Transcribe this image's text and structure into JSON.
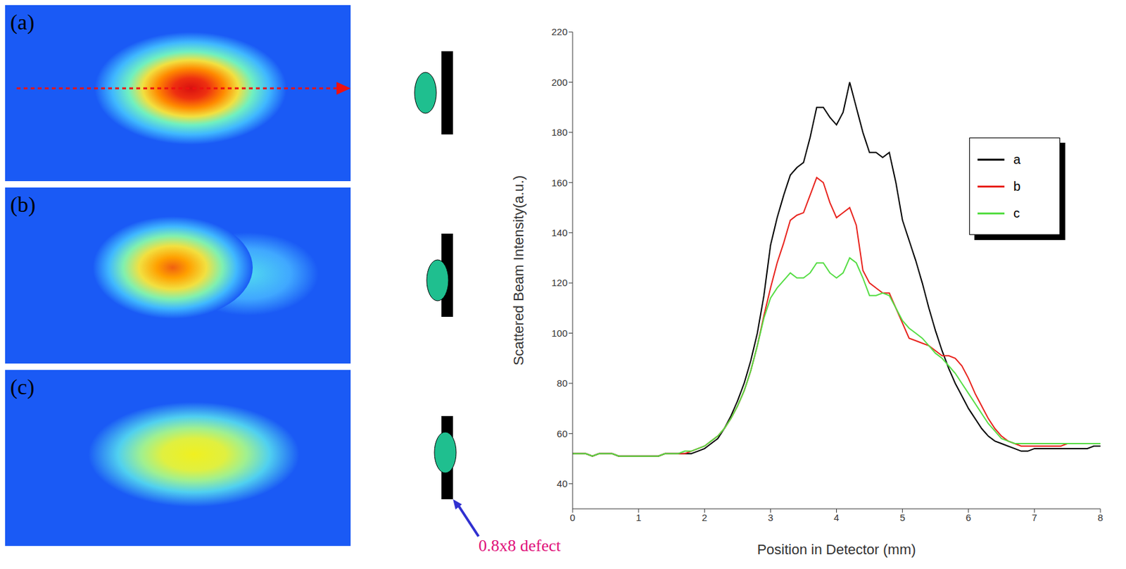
{
  "chart_data": {
    "type": "line",
    "x_label": "Position in Detector (mm)",
    "y_label": "Scattered Beam Intensity(a.u.)",
    "x": [
      0,
      0.1,
      0.2,
      0.3,
      0.4,
      0.5,
      0.6,
      0.7,
      0.8,
      0.9,
      1.0,
      1.1,
      1.2,
      1.3,
      1.4,
      1.5,
      1.6,
      1.7,
      1.8,
      1.9,
      2.0,
      2.1,
      2.2,
      2.3,
      2.4,
      2.5,
      2.6,
      2.7,
      2.8,
      2.9,
      3.0,
      3.1,
      3.2,
      3.3,
      3.4,
      3.5,
      3.6,
      3.7,
      3.8,
      3.9,
      4.0,
      4.1,
      4.2,
      4.3,
      4.4,
      4.5,
      4.6,
      4.7,
      4.8,
      4.9,
      5.0,
      5.1,
      5.2,
      5.3,
      5.4,
      5.5,
      5.6,
      5.7,
      5.8,
      5.9,
      6.0,
      6.1,
      6.2,
      6.3,
      6.4,
      6.5,
      6.6,
      6.7,
      6.8,
      6.9,
      7.0,
      7.1,
      7.2,
      7.3,
      7.4,
      7.5,
      7.6,
      7.7,
      7.8,
      7.9,
      8.0
    ],
    "series": [
      {
        "name": "a",
        "color": "#000000",
        "values": [
          52,
          52,
          52,
          51,
          52,
          52,
          52,
          51,
          51,
          51,
          51,
          51,
          51,
          51,
          52,
          52,
          52,
          52,
          52,
          53,
          54,
          56,
          58,
          62,
          67,
          73,
          80,
          89,
          100,
          115,
          135,
          146,
          155,
          163,
          166,
          168,
          178,
          190,
          190,
          186,
          183,
          188,
          200,
          190,
          180,
          172,
          172,
          170,
          172,
          160,
          145,
          137,
          129,
          120,
          110,
          101,
          93,
          86,
          80,
          75,
          70,
          66,
          62,
          59,
          57,
          56,
          55,
          54,
          53,
          53,
          54,
          54,
          54,
          54,
          54,
          54,
          54,
          54,
          54,
          55,
          55
        ]
      },
      {
        "name": "b",
        "color": "#e8221c",
        "values": [
          52,
          52,
          52,
          51,
          52,
          52,
          52,
          51,
          51,
          51,
          51,
          51,
          51,
          51,
          52,
          52,
          52,
          52,
          53,
          54,
          55,
          57,
          59,
          62,
          66,
          71,
          77,
          85,
          95,
          107,
          118,
          128,
          136,
          145,
          147,
          148,
          155,
          162,
          160,
          152,
          146,
          148,
          150,
          143,
          125,
          120,
          118,
          116,
          116,
          110,
          104,
          98,
          97,
          96,
          95,
          93,
          91,
          91,
          90,
          87,
          82,
          76,
          71,
          66,
          62,
          59,
          57,
          56,
          55,
          55,
          55,
          55,
          55,
          55,
          55,
          56,
          56,
          56,
          56,
          56,
          56
        ]
      },
      {
        "name": "c",
        "color": "#55dd44",
        "values": [
          52,
          52,
          52,
          51,
          52,
          52,
          52,
          51,
          51,
          51,
          51,
          51,
          51,
          51,
          52,
          52,
          52,
          53,
          53,
          54,
          55,
          57,
          59,
          62,
          66,
          71,
          77,
          85,
          95,
          106,
          114,
          118,
          121,
          124,
          122,
          122,
          124,
          128,
          128,
          124,
          122,
          124,
          130,
          128,
          122,
          115,
          115,
          116,
          115,
          110,
          105,
          102,
          100,
          98,
          95,
          92,
          90,
          87,
          84,
          80,
          76,
          72,
          68,
          64,
          61,
          58,
          57,
          56,
          56,
          56,
          56,
          56,
          56,
          56,
          56,
          56,
          56,
          56,
          56,
          56,
          56
        ]
      }
    ],
    "xlim": [
      0,
      8
    ],
    "xticks": [
      0,
      1,
      2,
      3,
      4,
      5,
      6,
      7,
      8
    ],
    "ylim": [
      30,
      220
    ],
    "yticks": [
      40,
      60,
      80,
      100,
      120,
      140,
      160,
      180,
      200,
      220
    ],
    "legend": "upper right"
  },
  "panels": [
    "(a)",
    "(b)",
    "(c)"
  ],
  "annotation": "0.8x8 defect"
}
